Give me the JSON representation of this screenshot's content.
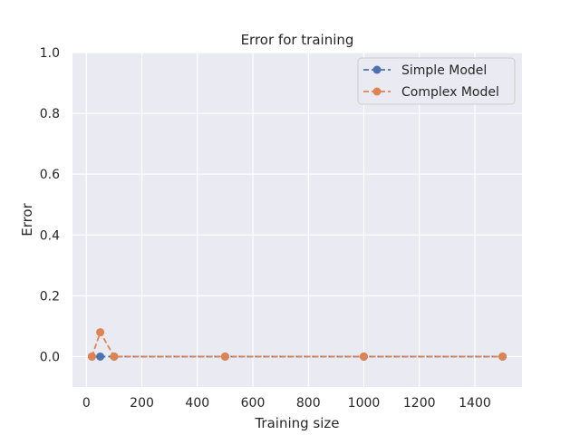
{
  "chart_data": {
    "type": "line",
    "title": "Error for training",
    "xlabel": "Training size",
    "ylabel": "Error",
    "xlim": [
      -50,
      1570
    ],
    "ylim": [
      -0.1,
      1.0
    ],
    "xticks": [
      0,
      200,
      400,
      600,
      800,
      1000,
      1200,
      1400
    ],
    "yticks": [
      0.0,
      0.2,
      0.4,
      0.6,
      0.8,
      1.0
    ],
    "xtick_labels": [
      "0",
      "200",
      "400",
      "600",
      "800",
      "1000",
      "1200",
      "1400"
    ],
    "ytick_labels": [
      "0.0",
      "0.2",
      "0.4",
      "0.6",
      "0.8",
      "1.0"
    ],
    "grid": true,
    "legend_position": "top-right",
    "background": "#eaeaf2",
    "series": [
      {
        "name": "Simple Model",
        "color": "#4c72b0",
        "linestyle": "dashed",
        "marker": "circle",
        "x": [
          20,
          50,
          100,
          500,
          1000,
          1500
        ],
        "y": [
          0.0,
          0.0,
          0.0,
          0.0,
          0.0,
          0.0
        ]
      },
      {
        "name": "Complex Model",
        "color": "#dd8452",
        "linestyle": "dashed",
        "marker": "circle",
        "x": [
          20,
          50,
          100,
          500,
          1000,
          1500
        ],
        "y": [
          0.0,
          0.08,
          0.0,
          0.0,
          0.0,
          0.0
        ]
      }
    ]
  }
}
